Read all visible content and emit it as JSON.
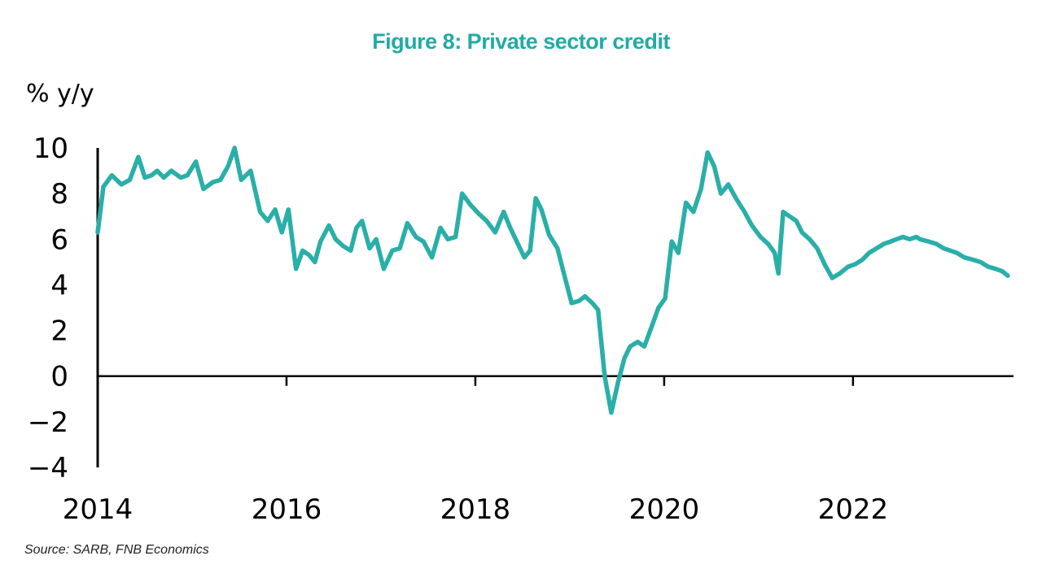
{
  "colors": {
    "title": "#21ABA5",
    "line": "#2AAFA8",
    "axis": "#000000"
  },
  "chart_data": {
    "type": "line",
    "title": "Figure 8: Private sector credit",
    "ylabel": "% y/y",
    "xlabel": "",
    "source": "Source: SARB, FNB Economics",
    "ylim": [
      -4,
      10
    ],
    "xlim": [
      2014.0,
      2023.7
    ],
    "yticks": [
      10,
      8,
      6,
      4,
      2,
      0,
      -2,
      -4
    ],
    "xticks": [
      2014,
      2016,
      2018,
      2020,
      2022
    ],
    "grid": false,
    "legend": "none",
    "series": [
      {
        "x": [
          2014.0,
          2014.06,
          2014.15,
          2014.25,
          2014.34,
          2014.43,
          2014.5,
          2014.57,
          2014.63,
          2014.7,
          2014.78,
          2014.88,
          2014.95,
          2015.04,
          2015.12,
          2015.22,
          2015.3,
          2015.38,
          2015.45,
          2015.52,
          2015.62,
          2015.72,
          2015.8,
          2015.88,
          2015.95,
          2016.02,
          2016.1,
          2016.17,
          2016.24,
          2016.3,
          2016.36,
          2016.45,
          2016.52,
          2016.6,
          2016.68,
          2016.74,
          2016.8,
          2016.88,
          2016.95,
          2017.03,
          2017.12,
          2017.2,
          2017.28,
          2017.37,
          2017.45,
          2017.54,
          2017.63,
          2017.71,
          2017.79,
          2017.86,
          2017.95,
          2018.04,
          2018.12,
          2018.21,
          2018.3,
          2018.37,
          2018.45,
          2018.52,
          2018.58,
          2018.64,
          2018.7,
          2018.78,
          2018.87,
          2018.95,
          2019.02,
          2019.1,
          2019.16,
          2019.24,
          2019.3,
          2019.37,
          2019.44,
          2019.51,
          2019.58,
          2019.64,
          2019.72,
          2019.79,
          2019.87,
          2019.94,
          2020.01,
          2020.08,
          2020.15,
          2020.23,
          2020.31,
          2020.39,
          2020.46,
          2020.53,
          2020.6,
          2020.68,
          2020.76,
          2020.85,
          2020.93,
          2021.02,
          2021.1,
          2021.17,
          2021.21,
          2021.26,
          2021.33,
          2021.4,
          2021.46,
          2021.54,
          2021.62,
          2021.7,
          2021.78,
          2021.86,
          2021.95,
          2022.02,
          2022.1,
          2022.17,
          2022.25,
          2022.33,
          2022.4,
          2022.46,
          2022.53,
          2022.6,
          2022.67,
          2022.71,
          2022.8,
          2022.88,
          2022.96,
          2023.03,
          2023.1,
          2023.18,
          2023.27,
          2023.35,
          2023.43,
          2023.51,
          2023.58,
          2023.64
        ],
        "y": [
          6.3,
          8.3,
          8.8,
          8.4,
          8.6,
          9.6,
          8.7,
          8.8,
          9.0,
          8.7,
          9.0,
          8.7,
          8.8,
          9.4,
          8.2,
          8.5,
          8.6,
          9.2,
          10.0,
          8.6,
          9.0,
          7.2,
          6.8,
          7.3,
          6.3,
          7.3,
          4.7,
          5.5,
          5.3,
          5.0,
          5.9,
          6.6,
          6.0,
          5.7,
          5.5,
          6.5,
          6.8,
          5.6,
          6.0,
          4.7,
          5.5,
          5.6,
          6.7,
          6.1,
          5.9,
          5.2,
          6.5,
          6.0,
          6.1,
          8.0,
          7.5,
          7.1,
          6.8,
          6.3,
          7.2,
          6.5,
          5.8,
          5.2,
          5.5,
          7.8,
          7.3,
          6.2,
          5.6,
          4.3,
          3.2,
          3.3,
          3.5,
          3.2,
          2.9,
          0.0,
          -1.6,
          -0.3,
          0.8,
          1.3,
          1.5,
          1.3,
          2.2,
          3.0,
          3.4,
          5.9,
          5.4,
          7.6,
          7.2,
          8.2,
          9.8,
          9.2,
          8.0,
          8.4,
          7.8,
          7.2,
          6.6,
          6.1,
          5.8,
          5.4,
          4.5,
          7.2,
          7.0,
          6.8,
          6.3,
          6.0,
          5.6,
          4.9,
          4.3,
          4.5,
          4.8,
          4.9,
          5.1,
          5.4,
          5.6,
          5.8,
          5.9,
          6.0,
          6.1,
          6.0,
          6.1,
          6.0,
          5.9,
          5.8,
          5.6,
          5.5,
          5.4,
          5.2,
          5.1,
          5.0,
          4.8,
          4.7,
          4.6,
          4.4
        ]
      }
    ]
  }
}
